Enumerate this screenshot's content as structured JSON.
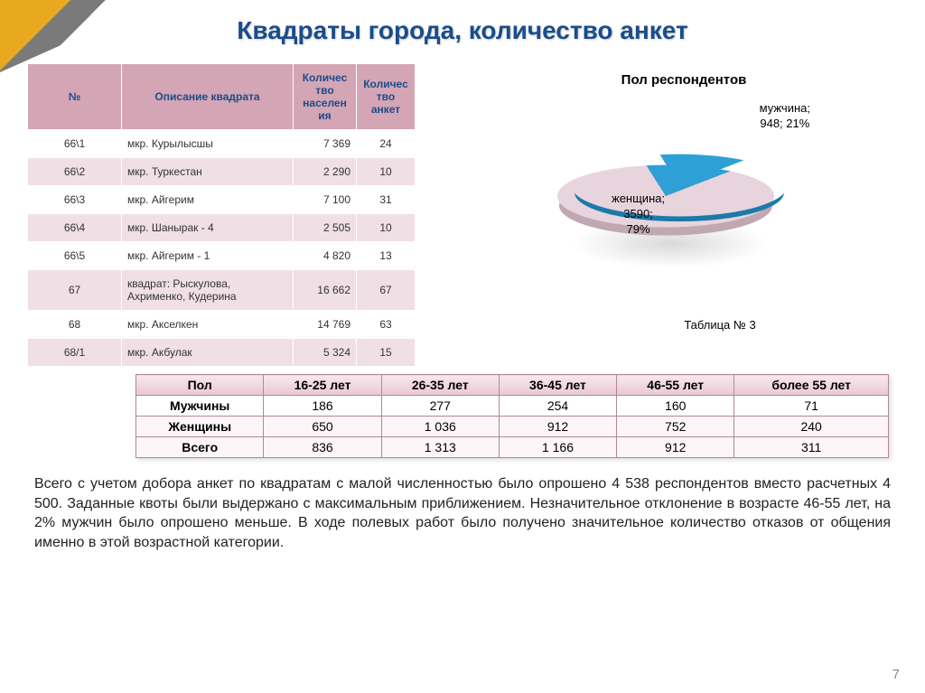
{
  "title": "Квадраты города, количество анкет",
  "table1": {
    "headers": {
      "num": "№",
      "desc": "Описание квадрата",
      "pop": "Количес тво населен ия",
      "q": "Количес тво анкет"
    },
    "rows": [
      {
        "num": "66\\1",
        "desc": "мкр. Курылысшы",
        "pop": "7 369",
        "q": "24"
      },
      {
        "num": "66\\2",
        "desc": "мкр. Туркестан",
        "pop": "2 290",
        "q": "10"
      },
      {
        "num": "66\\3",
        "desc": "мкр. Айгерим",
        "pop": "7 100",
        "q": "31"
      },
      {
        "num": "66\\4",
        "desc": "мкр. Шанырак - 4",
        "pop": "2 505",
        "q": "10"
      },
      {
        "num": "66\\5",
        "desc": "мкр. Айгерим - 1",
        "pop": "4 820",
        "q": "13"
      },
      {
        "num": "67",
        "desc": "квадрат: Рыскулова, Ахрименко, Кудерина",
        "pop": "16 662",
        "q": "67"
      },
      {
        "num": "68",
        "desc": "мкр. Акселкен",
        "pop": "14 769",
        "q": "63"
      },
      {
        "num": "68/1",
        "desc": "мкр. Акбулак",
        "pop": "5 324",
        "q": "15"
      }
    ]
  },
  "pie": {
    "title": "Пол респондентов",
    "male_label": "мужчина;\n948; 21%",
    "female_label": "женщина;\n3590;\n79%",
    "male_color": "#2ea0d6",
    "female_color": "#e8d4dc",
    "male_pct": 21,
    "female_pct": 79
  },
  "table_caption": "Таблица № 3",
  "table2": {
    "headers": [
      "Пол",
      "16-25 лет",
      "26-35 лет",
      "36-45 лет",
      "46-55 лет",
      "более 55 лет"
    ],
    "rows": [
      [
        "Мужчины",
        "186",
        "277",
        "254",
        "160",
        "71"
      ],
      [
        "Женщины",
        "650",
        "1 036",
        "912",
        "752",
        "240"
      ],
      [
        "Всего",
        "836",
        "1 313",
        "1 166",
        "912",
        "311"
      ]
    ]
  },
  "body_text": "Всего с учетом добора анкет по квадратам с малой численностью было опрошено 4 538 респондентов вместо расчетных 4 500. Заданные квоты были выдержано с максимальным приближением. Незначительное отклонение в возрасте 46-55 лет,  на 2% мужчин было опрошено меньше. В ходе полевых работ было получено значительное количество отказов от общения именно в этой возрастной категории.",
  "page_number": "7"
}
